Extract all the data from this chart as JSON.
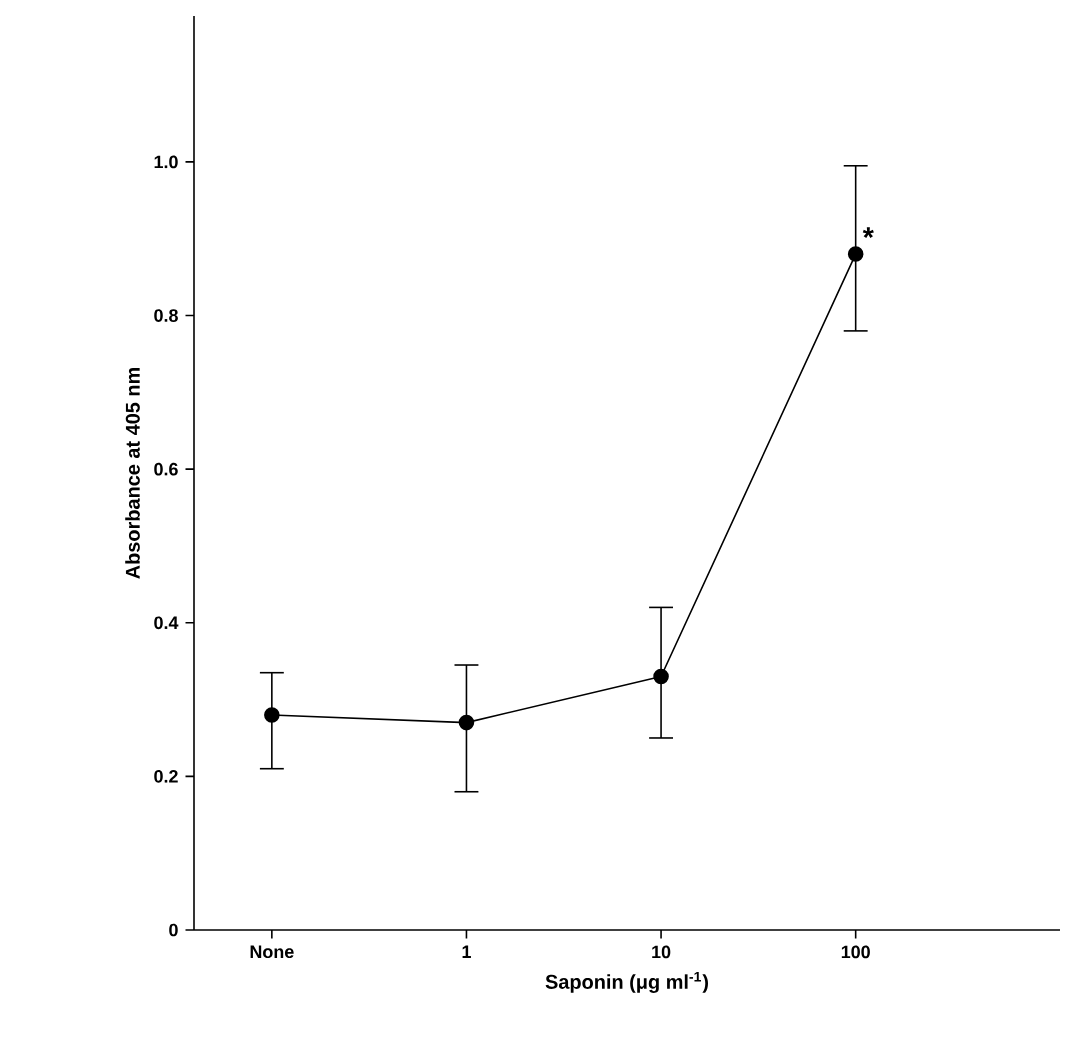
{
  "chart_data": {
    "type": "line",
    "xlabel": "Saponin (μg ml$^{-1}$)",
    "ylabel": "Absorbance at 405 nm",
    "categories": [
      "None",
      "1",
      "10",
      "100"
    ],
    "series": [
      {
        "color": "#000000",
        "values": [
          0.28,
          0.27,
          0.33,
          0.88
        ],
        "errors": [
          [
            0.21,
            0.335
          ],
          [
            0.18,
            0.345
          ],
          [
            0.25,
            0.42
          ],
          [
            0.78,
            0.995
          ]
        ]
      }
    ],
    "ylim": [
      0,
      1.19
    ],
    "yticks": [
      0,
      0.2,
      0.4,
      0.6,
      0.8,
      {
        "value": 1.0,
        "label": "1.0"
      }
    ],
    "marker": "circle",
    "line_style": "solid",
    "grid": false,
    "annotations": [
      {
        "text": "*",
        "x": "100",
        "y": 0.88
      }
    ]
  }
}
